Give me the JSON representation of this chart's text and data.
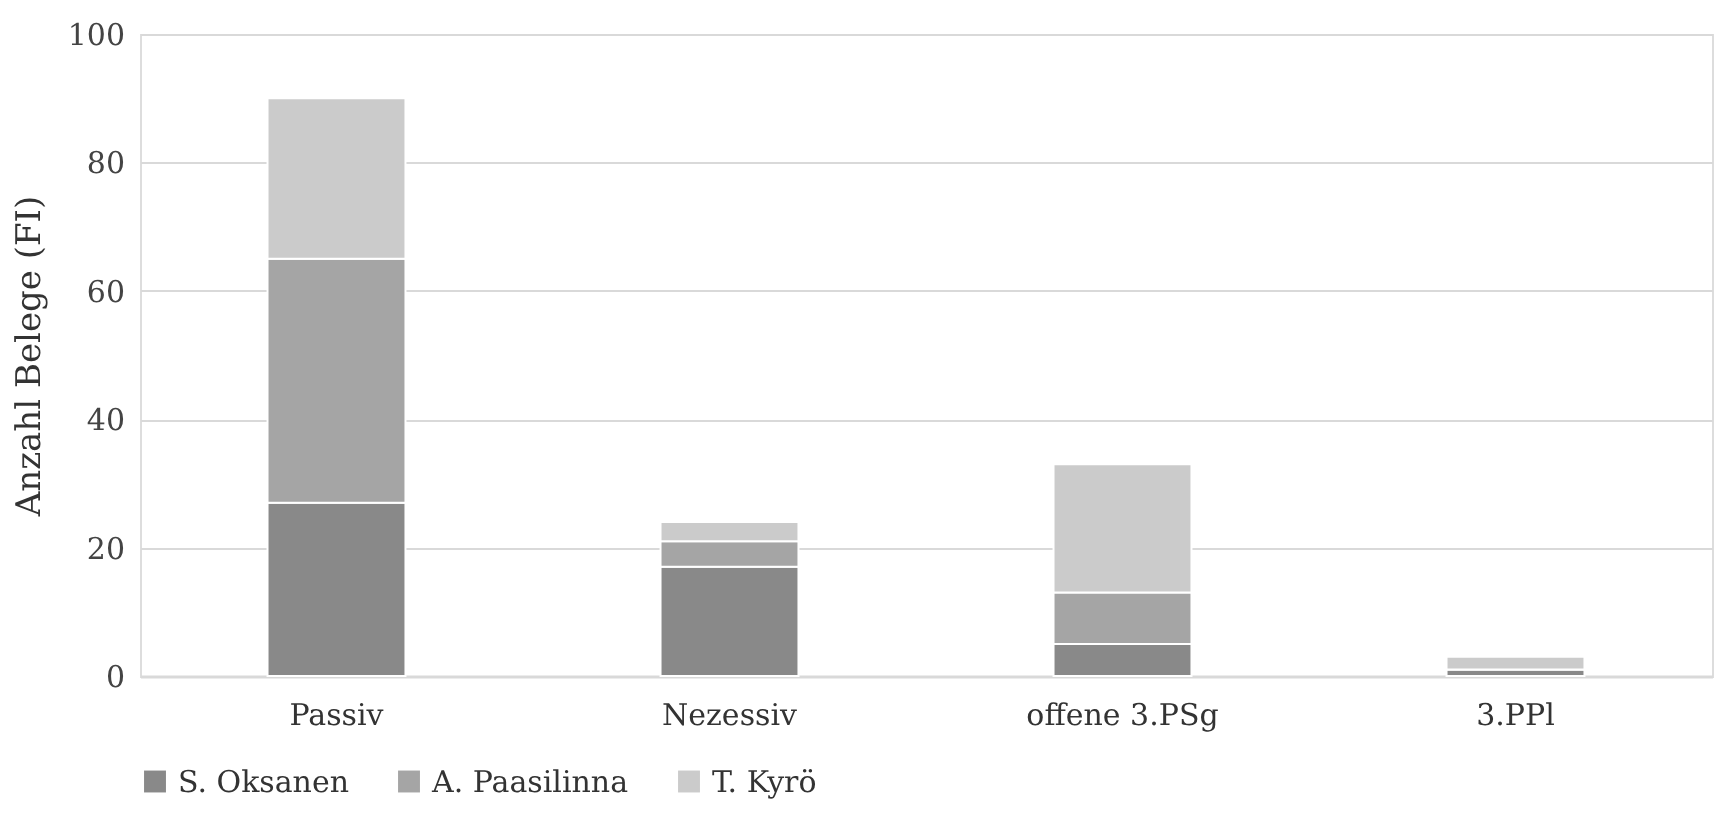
{
  "chart_data": {
    "type": "bar",
    "stacked": true,
    "ylabel": "Anzahl Belege (FI)",
    "categories": [
      "Passiv",
      "Nezessiv",
      "offene 3.PSg",
      "3.PPl"
    ],
    "series": [
      {
        "name": "S. Oksanen",
        "color": "#898989",
        "values": [
          27,
          17,
          5,
          1
        ]
      },
      {
        "name": "A. Paasilinna",
        "color": "#a5a5a5",
        "values": [
          38,
          4,
          8,
          0
        ]
      },
      {
        "name": "T. Kyrö",
        "color": "#cbcbcb",
        "values": [
          25,
          3,
          20,
          2
        ]
      }
    ],
    "ylim": [
      0,
      100
    ],
    "yticks": [
      0,
      20,
      40,
      60,
      80,
      100
    ],
    "grid": "y",
    "legend": "bottom"
  }
}
